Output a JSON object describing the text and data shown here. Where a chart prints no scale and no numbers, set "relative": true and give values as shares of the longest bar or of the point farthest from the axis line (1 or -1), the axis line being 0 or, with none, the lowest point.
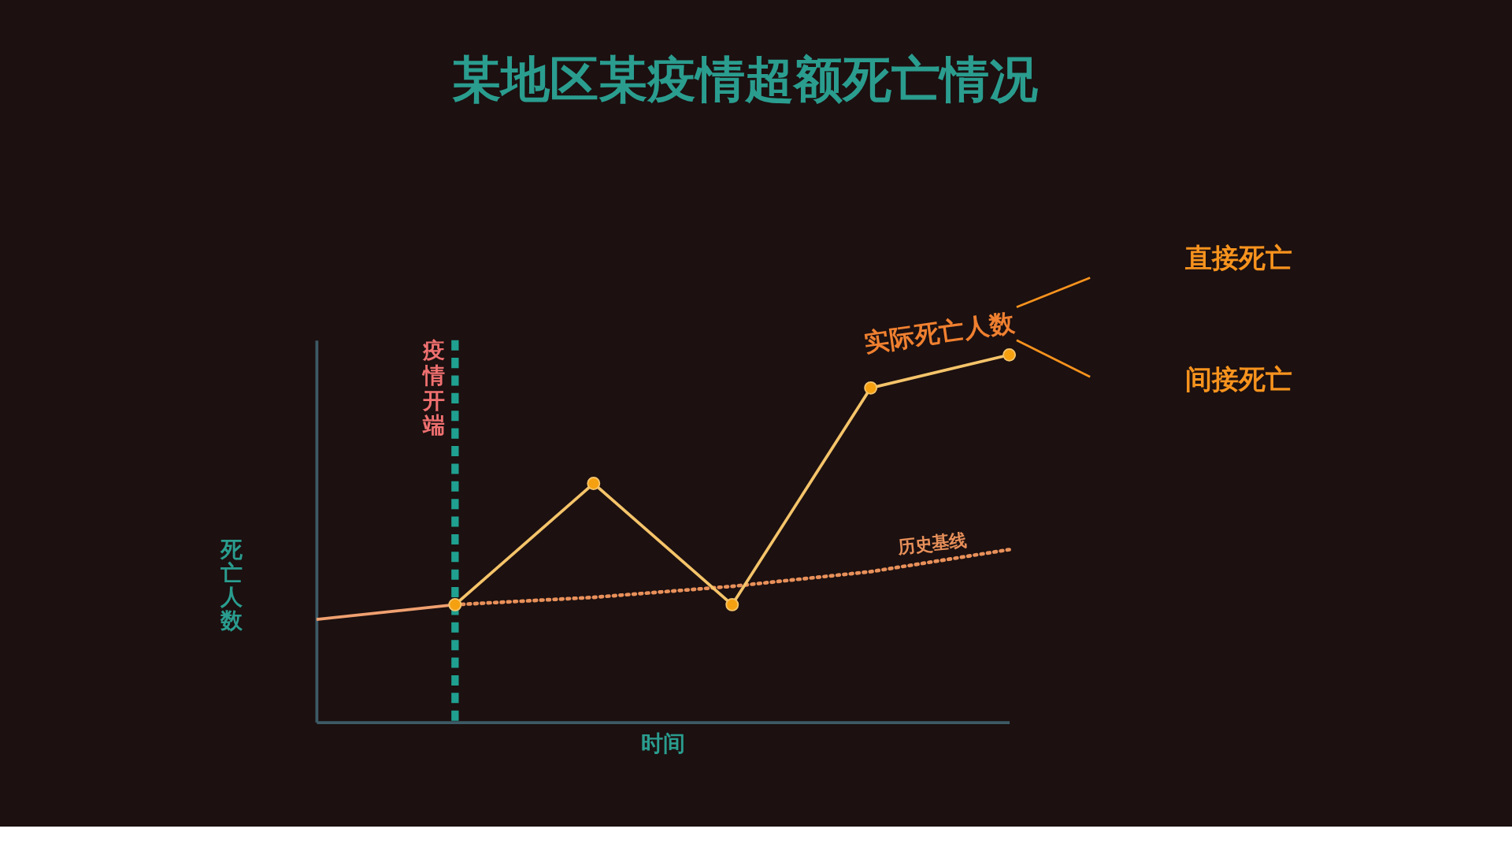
{
  "chart_data": {
    "type": "line",
    "title": "某地区某疫情超额死亡情况",
    "xlabel": "时间",
    "ylabel": "死亡人数",
    "relative": true,
    "categories": [
      null,
      null,
      null,
      null,
      null,
      null
    ],
    "series": [
      {
        "color": "#f0a070",
        "values": [
          0.28,
          0.32,
          null,
          null,
          null,
          null
        ],
        "marker": "none",
        "line_style": "solid"
      },
      {
        "name": "历史基线",
        "color": "#e8905a",
        "values": [
          null,
          0.32,
          0.34,
          0.37,
          0.41,
          0.47
        ],
        "marker": "none",
        "line_style": "dotted"
      },
      {
        "name": "实际死亡人数",
        "color": "#f5c46a",
        "values": [
          null,
          0.32,
          0.65,
          0.32,
          0.91,
          1.0
        ],
        "marker": "circle",
        "line_style": "solid"
      }
    ],
    "annotations": [
      "疫情开端",
      "直接死亡",
      "间接死亡"
    ],
    "grid": false,
    "tick_labels": false
  }
}
